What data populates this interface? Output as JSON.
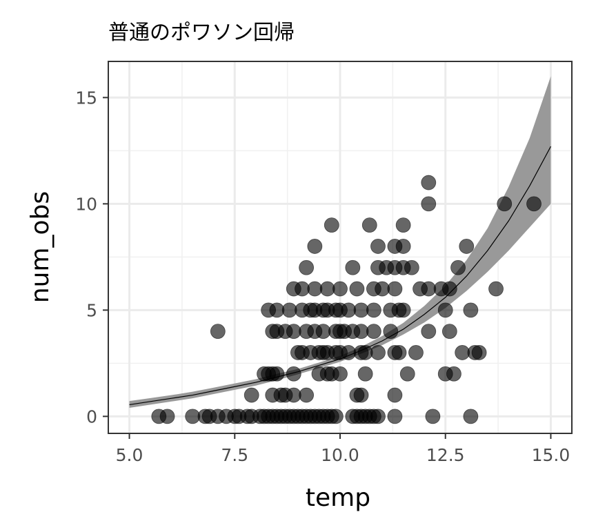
{
  "chart_data": {
    "type": "scatter",
    "title": "普通のポワソン回帰",
    "xlabel": "temp",
    "ylabel": "num_obs",
    "xlim": [
      4.5,
      15.5
    ],
    "ylim": [
      -0.8,
      16.7
    ],
    "x_ticks": [
      5.0,
      7.5,
      10.0,
      12.5,
      15.0
    ],
    "x_tick_labels": [
      "5.0",
      "7.5",
      "10.0",
      "12.5",
      "15.0"
    ],
    "y_ticks": [
      0,
      5,
      10,
      15
    ],
    "y_tick_labels": [
      "0",
      "5",
      "10",
      "15"
    ],
    "grid": true,
    "points_color": "#000000",
    "points_opacity": 0.6,
    "ribbon_color": "#999999",
    "line_color": "#000000",
    "points": [
      [
        5.7,
        0
      ],
      [
        5.9,
        0
      ],
      [
        6.5,
        0
      ],
      [
        6.8,
        0
      ],
      [
        6.9,
        0
      ],
      [
        7.1,
        0
      ],
      [
        7.3,
        0
      ],
      [
        7.5,
        0
      ],
      [
        7.6,
        0
      ],
      [
        7.8,
        0
      ],
      [
        7.9,
        0
      ],
      [
        8.1,
        0
      ],
      [
        8.2,
        0
      ],
      [
        8.3,
        0
      ],
      [
        8.4,
        0
      ],
      [
        8.5,
        0
      ],
      [
        8.6,
        0
      ],
      [
        8.7,
        0
      ],
      [
        8.8,
        0
      ],
      [
        8.9,
        0
      ],
      [
        9.0,
        0
      ],
      [
        9.1,
        0
      ],
      [
        9.2,
        0
      ],
      [
        9.3,
        0
      ],
      [
        9.4,
        0
      ],
      [
        9.5,
        0
      ],
      [
        9.6,
        0
      ],
      [
        9.7,
        0
      ],
      [
        9.8,
        0
      ],
      [
        9.9,
        0
      ],
      [
        10.3,
        0
      ],
      [
        10.4,
        0
      ],
      [
        10.5,
        0
      ],
      [
        10.6,
        0
      ],
      [
        10.7,
        0
      ],
      [
        10.8,
        0
      ],
      [
        10.9,
        0
      ],
      [
        11.3,
        0
      ],
      [
        12.2,
        0
      ],
      [
        13.1,
        0
      ],
      [
        7.9,
        1
      ],
      [
        8.4,
        1
      ],
      [
        8.6,
        1
      ],
      [
        8.7,
        1
      ],
      [
        8.9,
        1
      ],
      [
        9.2,
        1
      ],
      [
        10.4,
        1
      ],
      [
        10.5,
        1
      ],
      [
        11.3,
        1
      ],
      [
        8.2,
        2
      ],
      [
        8.3,
        2
      ],
      [
        8.4,
        2
      ],
      [
        8.5,
        2
      ],
      [
        8.9,
        2
      ],
      [
        9.5,
        2
      ],
      [
        9.7,
        2
      ],
      [
        9.8,
        2
      ],
      [
        10.0,
        2
      ],
      [
        10.6,
        2
      ],
      [
        11.6,
        2
      ],
      [
        12.5,
        2
      ],
      [
        12.7,
        2
      ],
      [
        9.0,
        3
      ],
      [
        9.1,
        3
      ],
      [
        9.3,
        3
      ],
      [
        9.5,
        3
      ],
      [
        9.6,
        3
      ],
      [
        9.7,
        3
      ],
      [
        9.9,
        3
      ],
      [
        10.0,
        3
      ],
      [
        10.2,
        3
      ],
      [
        10.5,
        3
      ],
      [
        10.6,
        3
      ],
      [
        10.9,
        3
      ],
      [
        11.3,
        3
      ],
      [
        11.4,
        3
      ],
      [
        11.8,
        3
      ],
      [
        12.9,
        3
      ],
      [
        13.2,
        3
      ],
      [
        13.3,
        3
      ],
      [
        7.1,
        4
      ],
      [
        8.4,
        4
      ],
      [
        8.5,
        4
      ],
      [
        8.7,
        4
      ],
      [
        8.9,
        4
      ],
      [
        9.2,
        4
      ],
      [
        9.4,
        4
      ],
      [
        9.6,
        4
      ],
      [
        9.9,
        4
      ],
      [
        10.0,
        4
      ],
      [
        10.1,
        4
      ],
      [
        10.3,
        4
      ],
      [
        10.5,
        4
      ],
      [
        10.8,
        4
      ],
      [
        11.2,
        4
      ],
      [
        12.1,
        4
      ],
      [
        12.6,
        4
      ],
      [
        8.3,
        5
      ],
      [
        8.5,
        5
      ],
      [
        8.8,
        5
      ],
      [
        9.1,
        5
      ],
      [
        9.3,
        5
      ],
      [
        9.4,
        5
      ],
      [
        9.6,
        5
      ],
      [
        9.7,
        5
      ],
      [
        9.9,
        5
      ],
      [
        10.0,
        5
      ],
      [
        10.2,
        5
      ],
      [
        10.5,
        5
      ],
      [
        10.8,
        5
      ],
      [
        11.2,
        5
      ],
      [
        11.4,
        5
      ],
      [
        11.5,
        5
      ],
      [
        12.5,
        5
      ],
      [
        13.1,
        5
      ],
      [
        8.9,
        6
      ],
      [
        9.1,
        6
      ],
      [
        9.4,
        6
      ],
      [
        9.7,
        6
      ],
      [
        10.0,
        6
      ],
      [
        10.4,
        6
      ],
      [
        10.8,
        6
      ],
      [
        11.0,
        6
      ],
      [
        11.3,
        6
      ],
      [
        11.9,
        6
      ],
      [
        12.1,
        6
      ],
      [
        12.4,
        6
      ],
      [
        12.6,
        6
      ],
      [
        13.7,
        6
      ],
      [
        9.2,
        7
      ],
      [
        10.3,
        7
      ],
      [
        10.9,
        7
      ],
      [
        11.1,
        7
      ],
      [
        11.3,
        7
      ],
      [
        11.5,
        7
      ],
      [
        11.7,
        7
      ],
      [
        12.8,
        7
      ],
      [
        9.4,
        8
      ],
      [
        10.9,
        8
      ],
      [
        11.3,
        8
      ],
      [
        11.5,
        8
      ],
      [
        13.0,
        8
      ],
      [
        9.8,
        9
      ],
      [
        10.7,
        9
      ],
      [
        11.5,
        9
      ],
      [
        12.1,
        10
      ],
      [
        13.9,
        10
      ],
      [
        14.6,
        10
      ],
      [
        12.1,
        11
      ]
    ],
    "fit_curve": [
      [
        5.0,
        0.55
      ],
      [
        5.5,
        0.7
      ],
      [
        6.0,
        0.85
      ],
      [
        6.5,
        1.0
      ],
      [
        7.0,
        1.2
      ],
      [
        7.5,
        1.4
      ],
      [
        8.0,
        1.6
      ],
      [
        8.5,
        1.85
      ],
      [
        9.0,
        2.1
      ],
      [
        9.5,
        2.4
      ],
      [
        10.0,
        2.7
      ],
      [
        10.5,
        3.1
      ],
      [
        11.0,
        3.55
      ],
      [
        11.5,
        4.1
      ],
      [
        12.0,
        4.8
      ],
      [
        12.5,
        5.6
      ],
      [
        13.0,
        6.6
      ],
      [
        13.5,
        7.8
      ],
      [
        14.0,
        9.2
      ],
      [
        14.5,
        10.85
      ],
      [
        15.0,
        12.7
      ]
    ],
    "ci_lower": [
      [
        5.0,
        0.4
      ],
      [
        5.5,
        0.55
      ],
      [
        6.0,
        0.7
      ],
      [
        6.5,
        0.85
      ],
      [
        7.0,
        1.05
      ],
      [
        7.5,
        1.25
      ],
      [
        8.0,
        1.45
      ],
      [
        8.5,
        1.7
      ],
      [
        9.0,
        1.98
      ],
      [
        9.5,
        2.27
      ],
      [
        10.0,
        2.57
      ],
      [
        10.5,
        2.95
      ],
      [
        11.0,
        3.35
      ],
      [
        11.5,
        3.85
      ],
      [
        12.0,
        4.42
      ],
      [
        12.5,
        5.1
      ],
      [
        13.0,
        5.9
      ],
      [
        13.5,
        6.8
      ],
      [
        14.0,
        7.8
      ],
      [
        14.5,
        8.9
      ],
      [
        15.0,
        10.0
      ]
    ],
    "ci_upper": [
      [
        5.0,
        0.72
      ],
      [
        5.5,
        0.86
      ],
      [
        6.0,
        1.0
      ],
      [
        6.5,
        1.16
      ],
      [
        7.0,
        1.35
      ],
      [
        7.5,
        1.55
      ],
      [
        8.0,
        1.75
      ],
      [
        8.5,
        2.0
      ],
      [
        9.0,
        2.23
      ],
      [
        9.5,
        2.53
      ],
      [
        10.0,
        2.85
      ],
      [
        10.5,
        3.27
      ],
      [
        11.0,
        3.78
      ],
      [
        11.5,
        4.4
      ],
      [
        12.0,
        5.2
      ],
      [
        12.5,
        6.15
      ],
      [
        13.0,
        7.35
      ],
      [
        13.5,
        8.85
      ],
      [
        14.0,
        10.8
      ],
      [
        14.5,
        13.1
      ],
      [
        15.0,
        16.0
      ]
    ]
  }
}
